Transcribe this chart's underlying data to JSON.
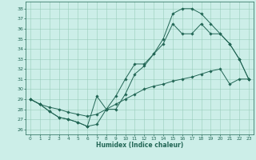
{
  "xlabel": "Humidex (Indice chaleur)",
  "bg_color": "#cceee8",
  "grid_color": "#99ccbb",
  "line_color": "#226655",
  "xlim": [
    -0.5,
    23.5
  ],
  "ylim": [
    25.5,
    38.7
  ],
  "yticks": [
    26,
    27,
    28,
    29,
    30,
    31,
    32,
    33,
    34,
    35,
    36,
    37,
    38
  ],
  "xticks": [
    0,
    1,
    2,
    3,
    4,
    5,
    6,
    7,
    8,
    9,
    10,
    11,
    12,
    13,
    14,
    15,
    16,
    17,
    18,
    19,
    20,
    21,
    22,
    23
  ],
  "line_a": [
    29.0,
    28.5,
    28.2,
    28.0,
    27.7,
    27.5,
    27.3,
    27.5,
    28.0,
    28.5,
    29.0,
    29.5,
    30.0,
    30.3,
    30.5,
    30.8,
    31.0,
    31.2,
    31.5,
    31.8,
    32.0,
    30.5,
    31.0,
    31.0
  ],
  "line_b": [
    29.0,
    28.5,
    27.8,
    27.2,
    27.0,
    26.7,
    26.3,
    26.5,
    28.0,
    28.0,
    29.5,
    31.5,
    32.3,
    33.5,
    34.5,
    36.5,
    35.5,
    35.5,
    36.5,
    35.5,
    35.5,
    34.5,
    33.0,
    31.0
  ],
  "line_c": [
    29.0,
    28.5,
    27.8,
    27.2,
    27.0,
    26.7,
    26.3,
    29.3,
    28.0,
    29.3,
    31.0,
    32.5,
    32.5,
    33.5,
    35.0,
    37.5,
    38.0,
    38.0,
    37.5,
    36.5,
    35.5,
    34.5,
    33.0,
    31.0
  ]
}
